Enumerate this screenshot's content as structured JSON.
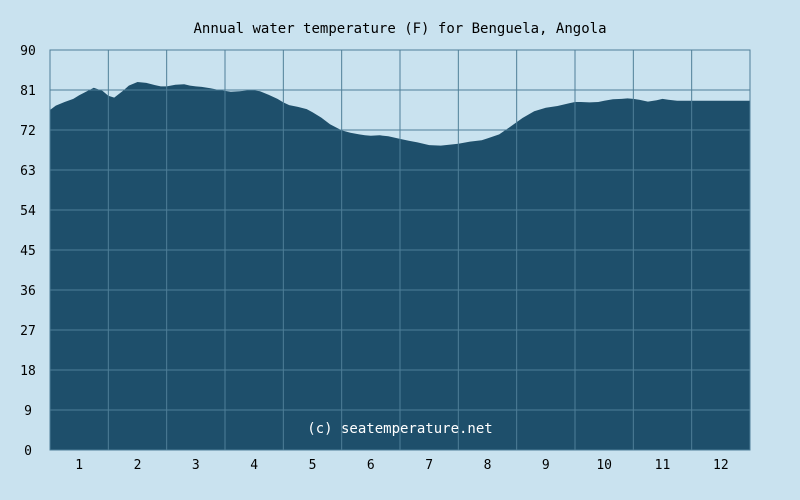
{
  "chart_data": {
    "type": "area",
    "title": "Annual water temperature (F) for Benguela, Angola",
    "credit": "(c) seatemperature.net",
    "xlabel": "",
    "ylabel": "",
    "x_ticks": [
      "1",
      "2",
      "3",
      "4",
      "5",
      "6",
      "7",
      "8",
      "9",
      "10",
      "11",
      "12"
    ],
    "y_ticks": [
      0,
      9,
      18,
      27,
      36,
      45,
      54,
      63,
      72,
      81,
      90
    ],
    "ylim": [
      0,
      90
    ],
    "xlim": [
      0.5,
      12.5
    ],
    "grid": true,
    "colors": {
      "background": "#c9e2ef",
      "plot_background": "#c9e2ef",
      "area_fill": "#1e4f6b",
      "grid_line": "#4f7f98",
      "text": "#000000",
      "credit_text": "#ffffff"
    },
    "series": [
      {
        "x": [
          0.5,
          0.6,
          0.75,
          0.9,
          1.0,
          1.1,
          1.25,
          1.4,
          1.5,
          1.6,
          1.75,
          1.85,
          2.0,
          2.15,
          2.3,
          2.4,
          2.5,
          2.65,
          2.8,
          2.9,
          3.0,
          3.1,
          3.25,
          3.4,
          3.5,
          3.6,
          3.75,
          3.9,
          4.0,
          4.1,
          4.25,
          4.4,
          4.5,
          4.6,
          4.75,
          4.9,
          5.0,
          5.15,
          5.3,
          5.5,
          5.65,
          5.8,
          5.9,
          6.0,
          6.15,
          6.3,
          6.5,
          6.65,
          6.8,
          7.0,
          7.2,
          7.5,
          7.7,
          7.9,
          8.0,
          8.2,
          8.4,
          8.6,
          8.8,
          9.0,
          9.2,
          9.4,
          9.5,
          9.6,
          9.75,
          9.9,
          10.0,
          10.15,
          10.3,
          10.4,
          10.5,
          10.6,
          10.75,
          10.9,
          11.0,
          11.1,
          11.25,
          11.4,
          11.5,
          11.6,
          11.75,
          11.9,
          12.0,
          12.1,
          12.25,
          12.4,
          12.5
        ],
        "values": [
          76.5,
          77.5,
          78.3,
          79.0,
          79.8,
          80.5,
          81.5,
          80.8,
          79.7,
          79.3,
          80.8,
          82.0,
          82.8,
          82.6,
          82.1,
          81.8,
          81.8,
          82.2,
          82.3,
          82.0,
          81.8,
          81.7,
          81.4,
          81.0,
          80.8,
          80.6,
          80.7,
          80.9,
          80.9,
          80.7,
          79.9,
          79.0,
          78.2,
          77.6,
          77.2,
          76.7,
          76.0,
          74.8,
          73.3,
          71.9,
          71.4,
          71.0,
          70.8,
          70.7,
          70.8,
          70.6,
          70.0,
          69.6,
          69.2,
          68.6,
          68.5,
          68.9,
          69.4,
          69.7,
          70.1,
          71.0,
          72.8,
          74.7,
          76.2,
          77.0,
          77.4,
          78.0,
          78.3,
          78.3,
          78.2,
          78.3,
          78.6,
          78.9,
          79.0,
          79.1,
          79.0,
          78.8,
          78.4,
          78.7,
          79.0,
          78.8,
          78.6,
          78.6,
          78.6,
          78.6,
          78.6,
          78.6,
          78.6,
          78.6,
          78.6,
          78.6,
          78.6
        ]
      }
    ]
  }
}
